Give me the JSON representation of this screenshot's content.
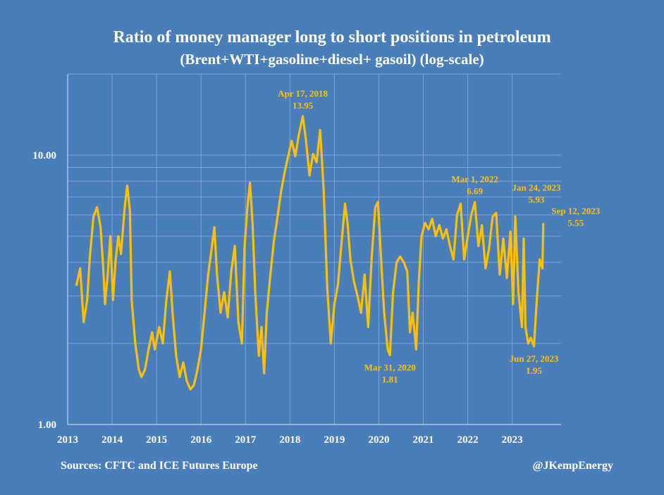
{
  "title": "Ratio of money manager long to short positions in petroleum",
  "subtitle": "(Brent+WTI+gasoline+diesel+ gasoil) (log-scale)",
  "source": "Sources: CFTC and ICE Futures Europe",
  "handle": "@JKempEnergy",
  "colors": {
    "background": "#4a7ebb",
    "line": "#ffc000",
    "grid": "#7ea5d4",
    "axis_text": "#ffffff",
    "annotation": "#ffc000"
  },
  "chart_data": {
    "type": "line",
    "title": "Ratio of money manager long to short positions in petroleum",
    "subtitle": "(Brent+WTI+gasoline+diesel+ gasoil) (log-scale)",
    "xlabel": "",
    "ylabel": "",
    "yscale": "log",
    "ylim": [
      1,
      20
    ],
    "yticks": [
      {
        "value": 1,
        "label": "1.00"
      },
      {
        "value": 10,
        "label": "10.00"
      }
    ],
    "xlim": [
      2013.0,
      2024.1
    ],
    "xticks": [
      "2013",
      "2014",
      "2015",
      "2016",
      "2017",
      "2018",
      "2019",
      "2020",
      "2021",
      "2022",
      "2023"
    ],
    "grid": true,
    "series": [
      {
        "values": [
          [
            2013.2,
            3.3
          ],
          [
            2013.28,
            3.8
          ],
          [
            2013.36,
            2.4
          ],
          [
            2013.44,
            2.9
          ],
          [
            2013.5,
            4.2
          ],
          [
            2013.58,
            5.9
          ],
          [
            2013.66,
            6.4
          ],
          [
            2013.74,
            5.4
          ],
          [
            2013.8,
            3.8
          ],
          [
            2013.84,
            2.8
          ],
          [
            2013.9,
            3.6
          ],
          [
            2013.96,
            5.0
          ],
          [
            2014.02,
            2.9
          ],
          [
            2014.08,
            4.1
          ],
          [
            2014.14,
            5.0
          ],
          [
            2014.2,
            4.3
          ],
          [
            2014.28,
            6.3
          ],
          [
            2014.34,
            7.7
          ],
          [
            2014.4,
            6.2
          ],
          [
            2014.44,
            2.9
          ],
          [
            2014.52,
            2.0
          ],
          [
            2014.6,
            1.6
          ],
          [
            2014.66,
            1.5
          ],
          [
            2014.74,
            1.6
          ],
          [
            2014.82,
            1.9
          ],
          [
            2014.9,
            2.2
          ],
          [
            2014.96,
            1.9
          ],
          [
            2015.06,
            2.3
          ],
          [
            2015.14,
            2.0
          ],
          [
            2015.22,
            2.9
          ],
          [
            2015.3,
            3.7
          ],
          [
            2015.36,
            2.6
          ],
          [
            2015.44,
            1.8
          ],
          [
            2015.52,
            1.5
          ],
          [
            2015.6,
            1.7
          ],
          [
            2015.68,
            1.45
          ],
          [
            2015.76,
            1.35
          ],
          [
            2015.84,
            1.4
          ],
          [
            2015.92,
            1.6
          ],
          [
            2016.0,
            1.9
          ],
          [
            2016.08,
            2.6
          ],
          [
            2016.16,
            3.6
          ],
          [
            2016.24,
            4.5
          ],
          [
            2016.3,
            5.4
          ],
          [
            2016.36,
            3.6
          ],
          [
            2016.44,
            2.6
          ],
          [
            2016.52,
            3.1
          ],
          [
            2016.6,
            2.5
          ],
          [
            2016.68,
            3.7
          ],
          [
            2016.76,
            4.6
          ],
          [
            2016.84,
            2.4
          ],
          [
            2016.92,
            2.0
          ],
          [
            2016.98,
            4.6
          ],
          [
            2017.04,
            6.3
          ],
          [
            2017.1,
            7.9
          ],
          [
            2017.16,
            5.6
          ],
          [
            2017.22,
            3.1
          ],
          [
            2017.3,
            1.8
          ],
          [
            2017.36,
            2.3
          ],
          [
            2017.42,
            1.55
          ],
          [
            2017.48,
            2.6
          ],
          [
            2017.56,
            3.6
          ],
          [
            2017.64,
            4.8
          ],
          [
            2017.72,
            5.9
          ],
          [
            2017.8,
            7.3
          ],
          [
            2017.88,
            8.6
          ],
          [
            2017.96,
            9.9
          ],
          [
            2018.04,
            11.3
          ],
          [
            2018.12,
            9.9
          ],
          [
            2018.2,
            11.9
          ],
          [
            2018.29,
            13.95
          ],
          [
            2018.36,
            11.4
          ],
          [
            2018.44,
            8.4
          ],
          [
            2018.52,
            10.1
          ],
          [
            2018.6,
            9.4
          ],
          [
            2018.68,
            12.4
          ],
          [
            2018.76,
            7.4
          ],
          [
            2018.84,
            3.2
          ],
          [
            2018.92,
            2.0
          ],
          [
            2019.0,
            2.8
          ],
          [
            2019.08,
            3.3
          ],
          [
            2019.16,
            4.7
          ],
          [
            2019.24,
            6.6
          ],
          [
            2019.3,
            5.5
          ],
          [
            2019.36,
            4.1
          ],
          [
            2019.44,
            3.4
          ],
          [
            2019.52,
            3.0
          ],
          [
            2019.6,
            2.6
          ],
          [
            2019.68,
            3.6
          ],
          [
            2019.76,
            2.3
          ],
          [
            2019.84,
            4.2
          ],
          [
            2019.92,
            6.4
          ],
          [
            2019.98,
            6.7
          ],
          [
            2020.04,
            4.4
          ],
          [
            2020.12,
            2.6
          ],
          [
            2020.2,
            1.9
          ],
          [
            2020.25,
            1.81
          ],
          [
            2020.32,
            3.1
          ],
          [
            2020.4,
            4.0
          ],
          [
            2020.48,
            4.2
          ],
          [
            2020.56,
            4.0
          ],
          [
            2020.64,
            3.7
          ],
          [
            2020.7,
            2.2
          ],
          [
            2020.76,
            2.6
          ],
          [
            2020.84,
            1.9
          ],
          [
            2020.9,
            3.4
          ],
          [
            2020.96,
            5.0
          ],
          [
            2021.04,
            5.6
          ],
          [
            2021.12,
            5.3
          ],
          [
            2021.2,
            5.8
          ],
          [
            2021.28,
            5.0
          ],
          [
            2021.36,
            5.5
          ],
          [
            2021.44,
            4.9
          ],
          [
            2021.52,
            5.3
          ],
          [
            2021.6,
            4.6
          ],
          [
            2021.68,
            4.1
          ],
          [
            2021.76,
            6.0
          ],
          [
            2021.84,
            6.6
          ],
          [
            2021.92,
            4.1
          ],
          [
            2022.0,
            5.0
          ],
          [
            2022.08,
            6.0
          ],
          [
            2022.16,
            6.69
          ],
          [
            2022.24,
            4.6
          ],
          [
            2022.32,
            5.5
          ],
          [
            2022.4,
            3.8
          ],
          [
            2022.48,
            4.5
          ],
          [
            2022.56,
            5.9
          ],
          [
            2022.64,
            6.1
          ],
          [
            2022.72,
            3.6
          ],
          [
            2022.8,
            4.9
          ],
          [
            2022.88,
            3.5
          ],
          [
            2022.96,
            5.2
          ],
          [
            2023.02,
            2.8
          ],
          [
            2023.07,
            5.93
          ],
          [
            2023.14,
            3.1
          ],
          [
            2023.22,
            2.3
          ],
          [
            2023.26,
            4.9
          ],
          [
            2023.3,
            2.3
          ],
          [
            2023.36,
            2.0
          ],
          [
            2023.42,
            2.1
          ],
          [
            2023.49,
            1.95
          ],
          [
            2023.56,
            3.0
          ],
          [
            2023.62,
            4.1
          ],
          [
            2023.68,
            3.8
          ],
          [
            2023.7,
            5.55
          ]
        ]
      }
    ],
    "annotations": [
      {
        "date": "Apr 17, 2018",
        "value": "13.95",
        "x": 2018.29,
        "y": 13.95,
        "pos": "above"
      },
      {
        "date": "Mar 31, 2020",
        "value": "1.81",
        "x": 2020.25,
        "y": 1.81,
        "pos": "below"
      },
      {
        "date": "Mar 1, 2022",
        "value": "6.69",
        "x": 2022.16,
        "y": 6.69,
        "pos": "above"
      },
      {
        "date": "Jan 24, 2023",
        "value": "5.93",
        "x": 2023.07,
        "y": 5.93,
        "pos": "above-right"
      },
      {
        "date": "Jun 27, 2023",
        "value": "1.95",
        "x": 2023.49,
        "y": 1.95,
        "pos": "below"
      },
      {
        "date": "Sep 12, 2023",
        "value": "5.55",
        "x": 2023.7,
        "y": 5.55,
        "pos": "right"
      }
    ]
  }
}
